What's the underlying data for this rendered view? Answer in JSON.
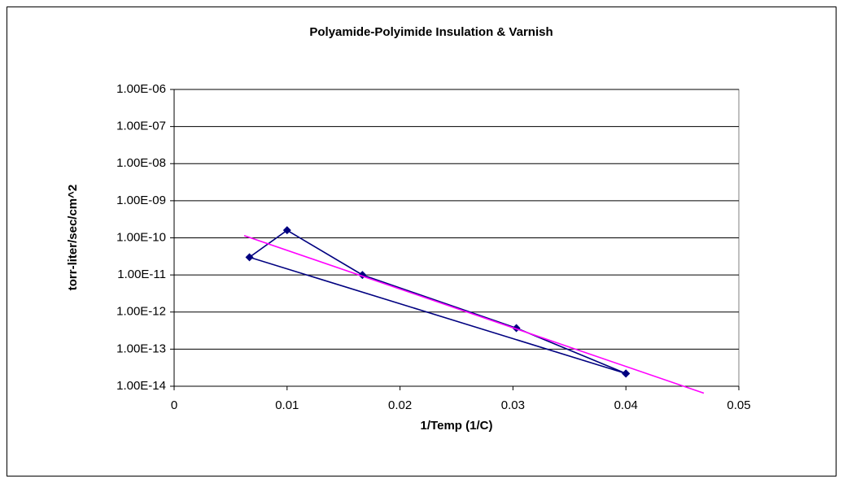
{
  "chart_data": {
    "type": "scatter",
    "title": "Polyamide-Polyimide Insulation & Varnish",
    "x_label": "1/Temp (1/C)",
    "y_label": "torr-liter/sec/cm^2",
    "log_y": true,
    "grid": true,
    "xlim": [
      0,
      0.05
    ],
    "xticks": [
      0,
      0.01,
      0.02,
      0.03,
      0.04,
      0.05
    ],
    "ylim": [
      1e-14,
      1e-06
    ],
    "yticks": [
      {
        "value": 1e-14,
        "label": "1.00E-14"
      },
      {
        "value": 1e-13,
        "label": "1.00E-13"
      },
      {
        "value": 1e-12,
        "label": "1.00E-12"
      },
      {
        "value": 1e-11,
        "label": "1.00E-11"
      },
      {
        "value": 1e-10,
        "label": "1.00E-10"
      },
      {
        "value": 1e-09,
        "label": "1.00E-09"
      },
      {
        "value": 1e-08,
        "label": "1.00E-08"
      },
      {
        "value": 1e-07,
        "label": "1.00E-07"
      },
      {
        "value": 1e-06,
        "label": "1.00E-06"
      }
    ],
    "series": [
      {
        "color": "#000080",
        "markers": true,
        "x": [
          0.04,
          0.00667,
          0.01,
          0.01667,
          0.0303,
          0.04
        ],
        "values": [
          2.2e-14,
          3e-11,
          1.6e-10,
          1e-11,
          3.7e-13,
          2.2e-14
        ]
      },
      {
        "color": "#ff00ff",
        "markers": false,
        "x": [
          0.0062,
          0.0469
        ],
        "values": [
          1.15e-10,
          6.5e-15
        ]
      }
    ]
  }
}
